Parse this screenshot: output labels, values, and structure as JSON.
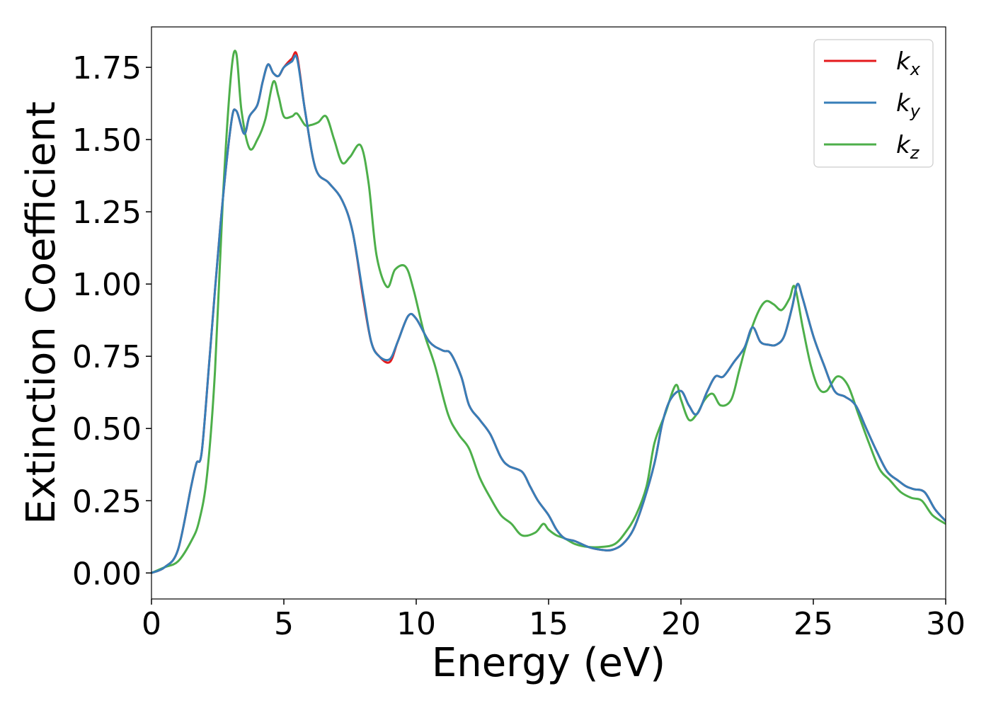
{
  "chart_data": {
    "type": "line",
    "xlabel": "Energy (eV)",
    "ylabel": "Extinction Coefficient",
    "xlim": [
      0,
      30
    ],
    "ylim": [
      -0.09,
      1.89
    ],
    "xticks": [
      0,
      5,
      10,
      15,
      20,
      25,
      30
    ],
    "xtick_labels": [
      "0",
      "5",
      "10",
      "15",
      "20",
      "25",
      "30"
    ],
    "yticks": [
      0,
      0.25,
      0.5,
      0.75,
      1.0,
      1.25,
      1.5,
      1.75
    ],
    "ytick_labels": [
      "0.00",
      "0.25",
      "0.50",
      "0.75",
      "1.00",
      "1.25",
      "1.50",
      "1.75"
    ],
    "grid": false,
    "legend_position": "top-right",
    "series": [
      {
        "name": "kx",
        "label_base": "k",
        "label_sub": "x",
        "color": "#e41a1c",
        "x": [
          0,
          0.5,
          1,
          1.5,
          1.7,
          1.9,
          2.2,
          2.6,
          3.0,
          3.2,
          3.5,
          3.7,
          4.0,
          4.2,
          4.4,
          4.6,
          4.8,
          5.0,
          5.3,
          5.5,
          5.8,
          6.2,
          6.7,
          7.2,
          7.6,
          8.0,
          8.3,
          8.6,
          9.0,
          9.3,
          9.7,
          10.0,
          10.5,
          11.0,
          11.3,
          11.7,
          12.0,
          12.4,
          12.8,
          13.2,
          13.5,
          14.0,
          14.3,
          14.6,
          15.0,
          15.3,
          15.6,
          16.0,
          16.5,
          17.0,
          17.4,
          17.8,
          18.2,
          18.6,
          19.0,
          19.3,
          19.6,
          20.0,
          20.3,
          20.6,
          21.0,
          21.3,
          21.6,
          22.0,
          22.4,
          22.7,
          23.0,
          23.3,
          23.6,
          23.9,
          24.2,
          24.4,
          24.6,
          25.0,
          25.4,
          25.8,
          26.2,
          26.6,
          27.0,
          27.4,
          27.8,
          28.2,
          28.5,
          28.8,
          29.2,
          29.6,
          30.0
        ],
        "y": [
          0.0,
          0.02,
          0.08,
          0.3,
          0.38,
          0.42,
          0.75,
          1.2,
          1.55,
          1.6,
          1.52,
          1.58,
          1.62,
          1.7,
          1.76,
          1.73,
          1.72,
          1.75,
          1.78,
          1.79,
          1.6,
          1.4,
          1.35,
          1.29,
          1.18,
          0.95,
          0.8,
          0.75,
          0.73,
          0.8,
          0.89,
          0.88,
          0.8,
          0.77,
          0.76,
          0.68,
          0.58,
          0.53,
          0.48,
          0.4,
          0.37,
          0.35,
          0.3,
          0.25,
          0.2,
          0.15,
          0.12,
          0.11,
          0.09,
          0.08,
          0.08,
          0.1,
          0.15,
          0.25,
          0.38,
          0.52,
          0.6,
          0.63,
          0.58,
          0.55,
          0.63,
          0.68,
          0.68,
          0.73,
          0.78,
          0.85,
          0.8,
          0.79,
          0.79,
          0.82,
          0.92,
          1.0,
          0.95,
          0.82,
          0.72,
          0.63,
          0.61,
          0.58,
          0.5,
          0.42,
          0.35,
          0.32,
          0.3,
          0.29,
          0.28,
          0.22,
          0.18
        ]
      },
      {
        "name": "ky",
        "label_base": "k",
        "label_sub": "y",
        "color": "#377eb8",
        "x": [
          0,
          0.5,
          1,
          1.5,
          1.7,
          1.9,
          2.2,
          2.6,
          3.0,
          3.2,
          3.5,
          3.7,
          4.0,
          4.2,
          4.4,
          4.6,
          4.8,
          5.0,
          5.3,
          5.5,
          5.8,
          6.2,
          6.7,
          7.2,
          7.6,
          8.0,
          8.3,
          8.6,
          9.0,
          9.3,
          9.7,
          10.0,
          10.5,
          11.0,
          11.3,
          11.7,
          12.0,
          12.4,
          12.8,
          13.2,
          13.5,
          14.0,
          14.3,
          14.6,
          15.0,
          15.3,
          15.6,
          16.0,
          16.5,
          17.0,
          17.4,
          17.8,
          18.2,
          18.6,
          19.0,
          19.3,
          19.6,
          20.0,
          20.3,
          20.6,
          21.0,
          21.3,
          21.6,
          22.0,
          22.4,
          22.7,
          23.0,
          23.3,
          23.6,
          23.9,
          24.2,
          24.4,
          24.6,
          25.0,
          25.4,
          25.8,
          26.2,
          26.6,
          27.0,
          27.4,
          27.8,
          28.2,
          28.5,
          28.8,
          29.2,
          29.6,
          30.0
        ],
        "y": [
          0.0,
          0.02,
          0.08,
          0.3,
          0.38,
          0.42,
          0.75,
          1.2,
          1.55,
          1.6,
          1.52,
          1.58,
          1.62,
          1.7,
          1.76,
          1.73,
          1.72,
          1.75,
          1.77,
          1.78,
          1.6,
          1.4,
          1.35,
          1.29,
          1.18,
          0.96,
          0.8,
          0.75,
          0.74,
          0.8,
          0.89,
          0.88,
          0.8,
          0.77,
          0.76,
          0.68,
          0.58,
          0.53,
          0.48,
          0.4,
          0.37,
          0.35,
          0.3,
          0.25,
          0.2,
          0.15,
          0.12,
          0.11,
          0.09,
          0.08,
          0.08,
          0.1,
          0.15,
          0.25,
          0.38,
          0.52,
          0.6,
          0.63,
          0.58,
          0.55,
          0.63,
          0.68,
          0.68,
          0.73,
          0.78,
          0.85,
          0.8,
          0.79,
          0.79,
          0.82,
          0.92,
          1.0,
          0.95,
          0.82,
          0.72,
          0.63,
          0.61,
          0.58,
          0.5,
          0.42,
          0.35,
          0.32,
          0.3,
          0.29,
          0.28,
          0.22,
          0.18
        ]
      },
      {
        "name": "kz",
        "label_base": "k",
        "label_sub": "z",
        "color": "#4daf4a",
        "x": [
          0,
          0.5,
          1,
          1.5,
          1.8,
          2.1,
          2.4,
          2.7,
          3.0,
          3.2,
          3.4,
          3.7,
          4.0,
          4.3,
          4.6,
          4.8,
          5.0,
          5.3,
          5.5,
          5.8,
          6.0,
          6.3,
          6.6,
          6.9,
          7.2,
          7.5,
          7.9,
          8.2,
          8.5,
          8.9,
          9.2,
          9.6,
          9.9,
          10.3,
          10.7,
          11.2,
          11.6,
          12.0,
          12.4,
          12.8,
          13.2,
          13.6,
          14.0,
          14.5,
          14.8,
          15.0,
          15.3,
          15.6,
          16.0,
          16.5,
          17.0,
          17.5,
          17.9,
          18.3,
          18.7,
          19.0,
          19.4,
          19.8,
          20.0,
          20.3,
          20.6,
          20.9,
          21.2,
          21.5,
          21.9,
          22.2,
          22.5,
          22.9,
          23.2,
          23.5,
          23.8,
          24.1,
          24.3,
          24.6,
          24.9,
          25.2,
          25.5,
          25.9,
          26.3,
          26.7,
          27.1,
          27.5,
          27.9,
          28.3,
          28.7,
          29.1,
          29.5,
          30.0
        ],
        "y": [
          0.0,
          0.02,
          0.04,
          0.11,
          0.18,
          0.34,
          0.7,
          1.3,
          1.72,
          1.8,
          1.6,
          1.47,
          1.5,
          1.57,
          1.7,
          1.65,
          1.58,
          1.58,
          1.59,
          1.55,
          1.55,
          1.56,
          1.58,
          1.5,
          1.42,
          1.44,
          1.48,
          1.35,
          1.1,
          0.99,
          1.05,
          1.06,
          0.98,
          0.83,
          0.72,
          0.55,
          0.48,
          0.43,
          0.33,
          0.26,
          0.2,
          0.17,
          0.13,
          0.14,
          0.17,
          0.15,
          0.13,
          0.12,
          0.1,
          0.09,
          0.09,
          0.1,
          0.14,
          0.2,
          0.3,
          0.45,
          0.55,
          0.65,
          0.6,
          0.53,
          0.55,
          0.6,
          0.62,
          0.58,
          0.6,
          0.7,
          0.8,
          0.9,
          0.94,
          0.93,
          0.91,
          0.95,
          0.99,
          0.85,
          0.72,
          0.64,
          0.63,
          0.68,
          0.65,
          0.55,
          0.45,
          0.36,
          0.32,
          0.28,
          0.26,
          0.25,
          0.2,
          0.17
        ]
      }
    ]
  }
}
